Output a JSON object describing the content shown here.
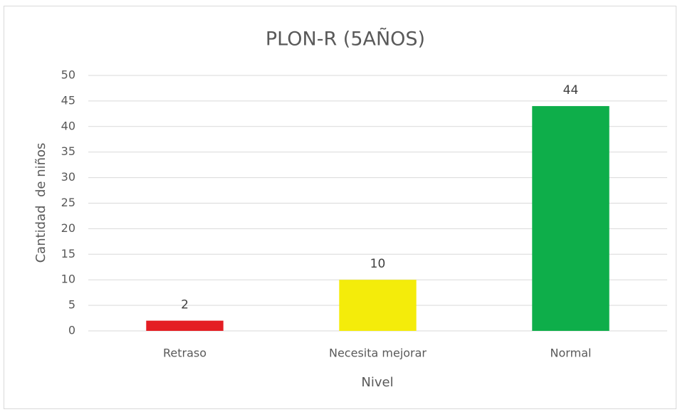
{
  "chart_data": {
    "type": "bar",
    "title": "PLON-R (5AÑOS)",
    "x_label": "Nivel",
    "y_label": "Cantidad  de niños",
    "categories": [
      "Retraso",
      "Necesita mejorar",
      "Normal"
    ],
    "values": [
      2,
      10,
      44
    ],
    "colors": [
      "#e41e24",
      "#f4ec0a",
      "#0eae4a"
    ],
    "ylim": [
      0,
      50
    ],
    "yticks": [
      0,
      5,
      10,
      15,
      20,
      25,
      30,
      35,
      40,
      45,
      50
    ],
    "grid": true,
    "data_labels": true
  }
}
